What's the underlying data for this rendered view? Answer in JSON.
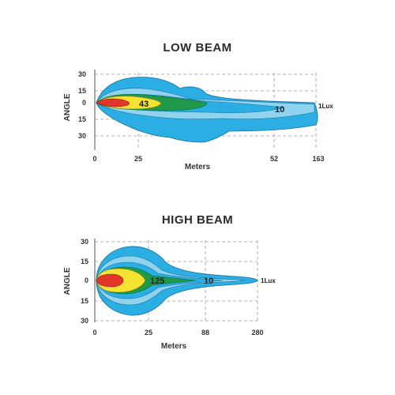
{
  "chart_data": [
    {
      "type": "heatmap",
      "title": "LOW BEAM",
      "xlabel": "Meters",
      "ylabel": "ANGLE",
      "x_ticks": [
        "0",
        "25",
        "52",
        "163"
      ],
      "y_ticks": [
        "30",
        "15",
        "0",
        "15",
        "30"
      ],
      "contours": [
        {
          "label": "1Lux",
          "color": "#2aaee3"
        },
        {
          "label": "",
          "color": "#8fd3ef"
        },
        {
          "label": "10",
          "color": "#2aaee3"
        },
        {
          "label": "",
          "color": "#1f9a4a"
        },
        {
          "label": "43",
          "color": "#f6e233"
        },
        {
          "label": "",
          "color": "#e3362a"
        }
      ],
      "grid": true
    },
    {
      "type": "heatmap",
      "title": "HIGH BEAM",
      "xlabel": "Meters",
      "ylabel": "ANGLE",
      "x_ticks": [
        "0",
        "25",
        "88",
        "280"
      ],
      "y_ticks": [
        "30",
        "15",
        "0",
        "15",
        "30"
      ],
      "contours": [
        {
          "label": "1Lux",
          "color": "#2aaee3"
        },
        {
          "label": "",
          "color": "#8fd3ef"
        },
        {
          "label": "10",
          "color": "#2aaee3"
        },
        {
          "label": "",
          "color": "#1f9a4a"
        },
        {
          "label": "125",
          "color": "#f6e233"
        },
        {
          "label": "",
          "color": "#e3362a"
        }
      ],
      "grid": true
    }
  ]
}
